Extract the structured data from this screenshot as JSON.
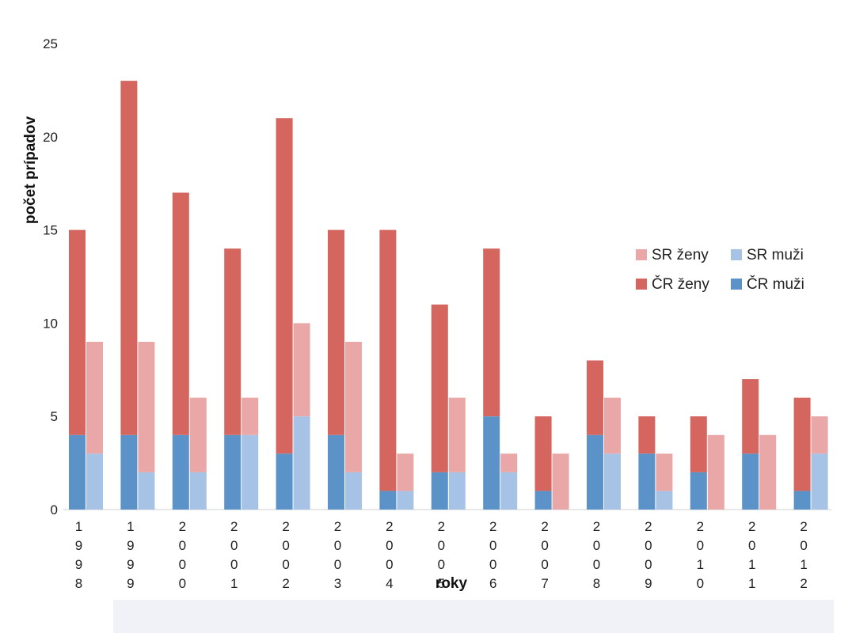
{
  "chart_data": {
    "type": "bar",
    "xlabel": "roky",
    "ylabel": "počet prípadov",
    "ylim": [
      0,
      25
    ],
    "yticks": [
      0,
      5,
      10,
      15,
      20,
      25
    ],
    "categories": [
      "1998",
      "1999",
      "2000",
      "2001",
      "2002",
      "2003",
      "2004",
      "2005",
      "2006",
      "2007",
      "2008",
      "2009",
      "2010",
      "2011",
      "2012"
    ],
    "groups": [
      {
        "country": "ČR",
        "series": [
          {
            "name": "ČR muži",
            "color": "#5b93c9",
            "values": [
              4,
              4,
              4,
              4,
              3,
              4,
              1,
              2,
              5,
              1,
              4,
              3,
              2,
              3,
              1
            ]
          },
          {
            "name": "ČR ženy",
            "color": "#d4655f",
            "values": [
              11,
              19,
              13,
              10,
              18,
              11,
              14,
              9,
              9,
              4,
              4,
              2,
              3,
              4,
              5
            ]
          }
        ]
      },
      {
        "country": "SR",
        "series": [
          {
            "name": "SR muži",
            "color": "#a6c3e5",
            "values": [
              3,
              2,
              2,
              4,
              5,
              2,
              1,
              2,
              2,
              0,
              3,
              1,
              0,
              0,
              3
            ]
          },
          {
            "name": "SR ženy",
            "color": "#e9a7a7",
            "values": [
              6,
              7,
              4,
              2,
              5,
              7,
              2,
              4,
              1,
              3,
              3,
              2,
              4,
              4,
              2
            ]
          }
        ]
      }
    ],
    "legend": {
      "placement": "right",
      "entries": [
        {
          "label": "SR ženy",
          "color": "#e9a7a7"
        },
        {
          "label": "SR muži",
          "color": "#a6c3e5"
        },
        {
          "label": "ČR ženy",
          "color": "#d4655f"
        },
        {
          "label": "ČR muži",
          "color": "#5b93c9"
        }
      ]
    },
    "grid": false
  }
}
